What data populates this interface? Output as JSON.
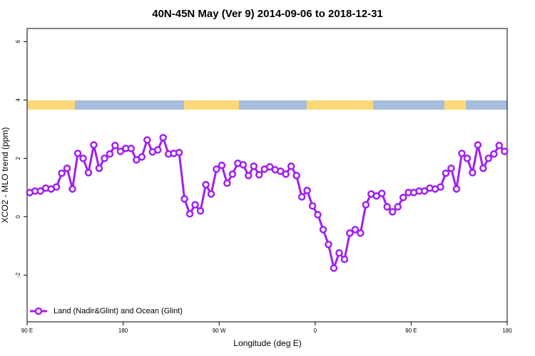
{
  "chart_data": {
    "type": "line",
    "title": "40N-45N May (Ver 9)   2014-09-06 to 2018-12-31",
    "x_label": "Longitude (deg E)",
    "y_label": "XCO2 - MLO trend (ppm)",
    "xlim": [
      90,
      540
    ],
    "ylim": [
      -3.6,
      6.45
    ],
    "xticks": [
      {
        "value": 90,
        "label": "90 E"
      },
      180,
      {
        "value": 270,
        "label": "90 W"
      },
      {
        "value": 360,
        "label": "0"
      },
      {
        "value": 450,
        "label": "90 E"
      },
      {
        "value": 540,
        "label": "180"
      }
    ],
    "yticks": [
      -2,
      0,
      2,
      4,
      6
    ],
    "x": [
      92.5,
      97.5,
      102.5,
      107.5,
      112.5,
      117.5,
      122.5,
      127.5,
      132.5,
      137.5,
      142.5,
      147.5,
      152.5,
      157.5,
      162.5,
      167.5,
      172.5,
      177.5,
      182.5,
      187.5,
      192.5,
      197.5,
      202.5,
      207.5,
      212.5,
      217.5,
      222.5,
      227.5,
      232.5,
      237.5,
      242.5,
      247.5,
      252.5,
      257.5,
      262.5,
      267.5,
      272.5,
      277.5,
      282.5,
      287.5,
      292.5,
      297.5,
      302.5,
      307.5,
      312.5,
      317.5,
      322.5,
      327.5,
      332.5,
      337.5,
      342.5,
      347.5,
      352.5,
      357.5,
      362.5,
      367.5,
      372.5,
      377.5,
      382.5,
      387.5,
      392.5,
      397.5,
      402.5,
      407.5,
      412.5,
      417.5,
      422.5,
      427.5,
      432.5,
      437.5,
      442.5,
      447.5,
      452.5,
      457.5,
      462.5,
      467.5,
      472.5,
      477.5,
      482.5,
      487.5,
      492.5,
      497.5,
      502.5,
      507.5,
      512.5,
      517.5,
      522.5,
      527.5,
      532.5,
      537.5
    ],
    "series": [
      {
        "name": "Land (Nadir&Glint) and Ocean (Glint)",
        "color": "#a020f0",
        "values": [
          0.83,
          0.88,
          0.88,
          0.98,
          0.95,
          1.02,
          1.49,
          1.66,
          0.95,
          2.17,
          2.0,
          1.51,
          2.46,
          1.66,
          2.0,
          2.15,
          2.44,
          2.24,
          2.34,
          2.34,
          1.95,
          2.05,
          2.63,
          2.22,
          2.29,
          2.71,
          2.15,
          2.17,
          2.2,
          0.61,
          0.1,
          0.41,
          0.2,
          1.1,
          0.78,
          1.63,
          1.76,
          1.15,
          1.46,
          1.83,
          1.78,
          1.41,
          1.73,
          1.44,
          1.63,
          1.71,
          1.61,
          1.56,
          1.46,
          1.73,
          1.41,
          0.68,
          0.9,
          0.37,
          0.07,
          -0.44,
          -0.95,
          -1.76,
          -1.24,
          -1.46,
          -0.56,
          -0.44,
          -0.56,
          0.41,
          0.78,
          0.71,
          0.8,
          0.34,
          0.17,
          0.34,
          0.66,
          0.83,
          0.83,
          0.88,
          0.88,
          0.98,
          0.95,
          1.02,
          1.49,
          1.66,
          0.95,
          2.17,
          2.0,
          1.51,
          2.46,
          1.66,
          2.0,
          2.15,
          2.44,
          2.24
        ]
      }
    ]
  }
}
